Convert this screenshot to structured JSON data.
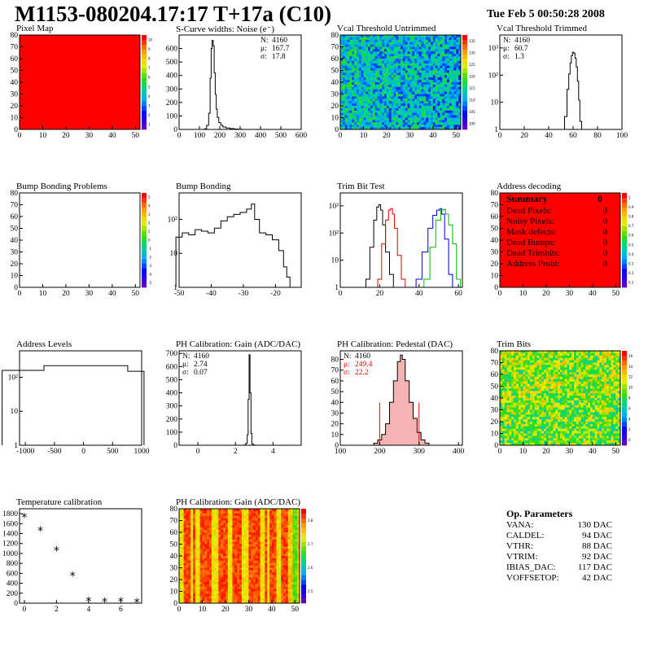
{
  "header": {
    "title": "M1153-080204.17:17 T+17a (C10)",
    "date": "Tue Feb  5 00:50:28 2008"
  },
  "panels": [
    {
      "id": "pixel-map",
      "title": "Pixel Map",
      "kind": "map",
      "style": "solid-red",
      "x_ticks": [
        "0",
        "10",
        "20",
        "30",
        "40",
        "50"
      ],
      "y_ticks": [
        "0",
        "10",
        "20",
        "30",
        "40",
        "50",
        "60",
        "70",
        "80"
      ],
      "z_ticks": [
        "1",
        "2",
        "3",
        "4",
        "5",
        "6",
        "7",
        "8",
        "9",
        "10"
      ],
      "stats": []
    },
    {
      "id": "scurve-widths",
      "title": "S-Curve widths: Noise (e⁻)",
      "kind": "hist1d",
      "x_ticks": [
        "0",
        "100",
        "200",
        "300",
        "400",
        "500",
        "600"
      ],
      "y_ticks": [
        "0",
        "100",
        "200",
        "300",
        "400",
        "500",
        "600"
      ],
      "log_y": false,
      "stats": [
        {
          "label": "N:",
          "value": "4160",
          "color": "#000"
        },
        {
          "label": "μ:",
          "value": "167.7",
          "color": "#000"
        },
        {
          "label": "σ:",
          "value": "17.8",
          "color": "#000"
        }
      ]
    },
    {
      "id": "vcal-untrimmed",
      "title": "Vcal Threshold Untrimmed",
      "kind": "map",
      "style": "noise-cool",
      "x_ticks": [
        "0",
        "10",
        "20",
        "30",
        "40",
        "50"
      ],
      "y_ticks": [
        "0",
        "10",
        "20",
        "30",
        "40",
        "50",
        "60",
        "70",
        "80"
      ],
      "z_ticks": [
        "100",
        "105",
        "110",
        "115",
        "120",
        "125",
        "130",
        "135"
      ],
      "stats": []
    },
    {
      "id": "vcal-trimmed",
      "title": "Vcal Threshold Trimmed",
      "kind": "hist1d",
      "x_ticks": [
        "0",
        "20",
        "40",
        "60",
        "80",
        "100"
      ],
      "y_ticks": [
        "1",
        "10",
        "10²",
        "10³"
      ],
      "log_y": true,
      "stats": [
        {
          "label": "N:",
          "value": "4160",
          "color": "#000"
        },
        {
          "label": "μ:",
          "value": "60.7",
          "color": "#000"
        },
        {
          "label": "σ:",
          "value": "1.3",
          "color": "#000"
        }
      ]
    },
    {
      "id": "bump-problems",
      "title": "Bump Bonding Problems",
      "kind": "map",
      "style": "empty",
      "x_ticks": [
        "0",
        "10",
        "20",
        "30",
        "40",
        "50"
      ],
      "y_ticks": [
        "0",
        "10",
        "20",
        "30",
        "40",
        "50",
        "60",
        "70",
        "80"
      ],
      "z_ticks": [
        "-5",
        "-4",
        "-3",
        "-2",
        "-1",
        "0",
        "1",
        "2",
        "3",
        "4",
        "5"
      ],
      "stats": []
    },
    {
      "id": "bump-bonding",
      "title": "Bump Bonding",
      "kind": "hist1d",
      "x_ticks": [
        "-50",
        "-40",
        "-30",
        "-20"
      ],
      "y_ticks": [
        "1",
        "10",
        "10²"
      ],
      "log_y": true,
      "stats": []
    },
    {
      "id": "trim-bit-test",
      "title": "Trim Bit Test",
      "kind": "hist-multi",
      "x_ticks": [
        "0",
        "20",
        "40",
        "60"
      ],
      "y_ticks": [
        "1",
        "10",
        "10²",
        "10³"
      ],
      "log_y": true,
      "stats": []
    },
    {
      "id": "address-decoding",
      "title": "Address decoding",
      "kind": "map",
      "style": "solid-red",
      "x_ticks": [
        "0",
        "10",
        "20",
        "30",
        "40",
        "50"
      ],
      "y_ticks": [
        "0",
        "10",
        "20",
        "30",
        "40",
        "50",
        "60",
        "70",
        "80"
      ],
      "z_ticks": [
        "0.1",
        "0.2",
        "0.3",
        "0.4",
        "0.5",
        "0.6",
        "0.7",
        "0.8",
        "0.9",
        "1"
      ],
      "stats": []
    },
    {
      "id": "address-levels",
      "title": "Address Levels",
      "kind": "hist1d",
      "x_ticks": [
        "-1000",
        "-500",
        "0",
        "500",
        "1000"
      ],
      "y_ticks": [
        "1",
        "10",
        "10²"
      ],
      "log_y": true,
      "stats": []
    },
    {
      "id": "ph-gain",
      "title": "PH Calibration: Gain (ADC/DAC)",
      "kind": "hist1d",
      "x_ticks": [
        "0",
        "2",
        "4"
      ],
      "y_ticks": [
        "0",
        "100",
        "200",
        "300",
        "400",
        "500",
        "600",
        "700"
      ],
      "log_y": false,
      "stats": [
        {
          "label": "N:",
          "value": "4160",
          "color": "#000"
        },
        {
          "label": "μ:",
          "value": "2.74",
          "color": "#000"
        },
        {
          "label": "σ:",
          "value": "0.07",
          "color": "#000"
        }
      ]
    },
    {
      "id": "ph-pedestal",
      "title": "PH Calibration: Pedestal (DAC)",
      "kind": "hist1d",
      "x_ticks": [
        "100",
        "200",
        "300",
        "400"
      ],
      "y_ticks": [
        "0",
        "10",
        "20",
        "30",
        "40",
        "50",
        "60",
        "70",
        "80"
      ],
      "log_y": false,
      "stats": [
        {
          "label": "N:",
          "value": "4160",
          "color": "#000"
        },
        {
          "label": "μ:",
          "value": "249.4",
          "color": "#e00000"
        },
        {
          "label": "σ:",
          "value": "22.2",
          "color": "#e00000"
        }
      ]
    },
    {
      "id": "trim-bits",
      "title": "Trim Bits",
      "kind": "map",
      "style": "noise-warm",
      "x_ticks": [
        "0",
        "10",
        "20",
        "30",
        "40",
        "50"
      ],
      "y_ticks": [
        "0",
        "10",
        "20",
        "30",
        "40",
        "50",
        "60",
        "70",
        "80"
      ],
      "z_ticks": [
        "0",
        "2",
        "4",
        "6",
        "8",
        "10",
        "12",
        "14",
        "16"
      ],
      "stats": []
    },
    {
      "id": "temp-calibration",
      "title": "Temperature calibration",
      "kind": "scatter",
      "x_ticks": [
        "0",
        "2",
        "4",
        "6"
      ],
      "y_ticks": [
        "0",
        "200",
        "400",
        "600",
        "800",
        "1000",
        "1200",
        "1400",
        "1600",
        "1800"
      ],
      "log_y": false,
      "stats": []
    },
    {
      "id": "ph-gain-map",
      "title": "PH Calibration: Gain (ADC/DAC)",
      "kind": "map",
      "style": "stripes",
      "x_ticks": [
        "0",
        "10",
        "20",
        "30",
        "40",
        "50"
      ],
      "y_ticks": [
        "0",
        "10",
        "20",
        "30",
        "40",
        "50",
        "60",
        "70",
        "80"
      ],
      "z_ticks": [
        "2.5",
        "2.6",
        "2.7",
        "2.8"
      ],
      "stats": []
    }
  ],
  "summary": {
    "title": "Summary",
    "total": "0",
    "rows": [
      {
        "label": "Dead Pixels:",
        "value": "0"
      },
      {
        "label": "Noisy Pixels:",
        "value": "0"
      },
      {
        "label": "Mask defects:",
        "value": "0"
      },
      {
        "label": "Dead Bumps:",
        "value": "0"
      },
      {
        "label": "Dead Trimbits:",
        "value": "0"
      },
      {
        "label": "Address Probl:",
        "value": "0"
      }
    ]
  },
  "op_params": {
    "title": "Op. Parameters",
    "rows": [
      {
        "label": "VANA:",
        "value": "130 DAC"
      },
      {
        "label": "CALDEL:",
        "value": "94 DAC"
      },
      {
        "label": "VTHR:",
        "value": "88 DAC"
      },
      {
        "label": "VTRIM:",
        "value": "92 DAC"
      },
      {
        "label": "IBIAS_DAC:",
        "value": "117 DAC"
      },
      {
        "label": "VOFFSETOP:",
        "value": "42 DAC"
      }
    ]
  },
  "chart_data": [
    {
      "type": "heatmap",
      "name": "Pixel Map",
      "xlim": [
        0,
        52
      ],
      "ylim": [
        0,
        80
      ],
      "zlim": [
        1,
        10
      ],
      "uniform_value": 10
    },
    {
      "type": "bar",
      "name": "S-Curve widths: Noise (e-)",
      "xlim": [
        0,
        600
      ],
      "ylim": [
        0,
        700
      ],
      "x": [
        130,
        140,
        150,
        155,
        160,
        165,
        170,
        175,
        180,
        185,
        190,
        200,
        210,
        220,
        240,
        260,
        280,
        300
      ],
      "values": [
        5,
        30,
        120,
        380,
        600,
        660,
        620,
        420,
        260,
        150,
        90,
        50,
        30,
        18,
        10,
        6,
        3,
        1
      ]
    },
    {
      "type": "heatmap",
      "name": "Vcal Threshold Untrimmed",
      "xlim": [
        0,
        52
      ],
      "ylim": [
        0,
        80
      ],
      "zlim": [
        100,
        137
      ]
    },
    {
      "type": "bar",
      "name": "Vcal Threshold Trimmed",
      "log_y": true,
      "xlim": [
        0,
        100
      ],
      "ylim": [
        1,
        3000
      ],
      "x": [
        52,
        54,
        56,
        57,
        58,
        59,
        60,
        61,
        62,
        63,
        64,
        65,
        66,
        68
      ],
      "values": [
        1,
        3,
        30,
        110,
        280,
        520,
        700,
        640,
        420,
        200,
        60,
        12,
        2,
        1
      ]
    },
    {
      "type": "heatmap",
      "name": "Bump Bonding Problems",
      "xlim": [
        0,
        52
      ],
      "ylim": [
        0,
        80
      ],
      "zlim": [
        -5,
        5
      ]
    },
    {
      "type": "bar",
      "name": "Bump Bonding",
      "log_y": true,
      "xlim": [
        -50,
        -12
      ],
      "ylim": [
        1,
        600
      ],
      "x": [
        -50,
        -48,
        -46,
        -44,
        -42,
        -40,
        -38,
        -36,
        -34,
        -32,
        -30,
        -28,
        -27,
        -26,
        -24,
        -22,
        -20,
        -18,
        -17,
        -16,
        -15
      ],
      "values": [
        30,
        40,
        35,
        50,
        45,
        40,
        55,
        90,
        120,
        140,
        160,
        200,
        280,
        100,
        40,
        35,
        25,
        12,
        4,
        2,
        1
      ]
    },
    {
      "type": "bar",
      "name": "Trim Bit Test",
      "log_y": true,
      "xlim": [
        0,
        62
      ],
      "ylim": [
        1,
        3000
      ],
      "series": [
        {
          "color": "#000000",
          "x": [
            14,
            16,
            18,
            19,
            20,
            21,
            22,
            24,
            26
          ],
          "values": [
            2,
            30,
            300,
            900,
            1100,
            700,
            200,
            20,
            3
          ]
        },
        {
          "color": "#e00000",
          "x": [
            20,
            22,
            24,
            25,
            26,
            27,
            28,
            30,
            32
          ],
          "values": [
            2,
            40,
            300,
            700,
            800,
            500,
            150,
            15,
            2
          ]
        },
        {
          "color": "#0000cc",
          "x": [
            40,
            43,
            46,
            48,
            50,
            51,
            52,
            54,
            56
          ],
          "values": [
            2,
            20,
            150,
            450,
            700,
            800,
            500,
            60,
            3
          ]
        },
        {
          "color": "#00bb00",
          "x": [
            44,
            47,
            50,
            52,
            53,
            54,
            56,
            58,
            60
          ],
          "values": [
            2,
            30,
            300,
            700,
            750,
            500,
            200,
            40,
            2
          ]
        }
      ]
    },
    {
      "type": "heatmap",
      "name": "Address decoding",
      "xlim": [
        0,
        52
      ],
      "ylim": [
        0,
        80
      ],
      "zlim": [
        0,
        1
      ],
      "uniform_value": 1
    },
    {
      "type": "bar",
      "name": "Address Levels",
      "log_y": true,
      "xlim": [
        -1100,
        1000
      ],
      "ylim": [
        1,
        600
      ],
      "x": [
        -1040,
        -320,
        40,
        340,
        620,
        900
      ],
      "values": [
        160,
        220,
        220,
        220,
        220,
        150
      ]
    },
    {
      "type": "bar",
      "name": "PH Calibration: Gain",
      "xlim": [
        -1,
        5.5
      ],
      "ylim": [
        0,
        720
      ],
      "x": [
        2.5,
        2.6,
        2.65,
        2.7,
        2.75,
        2.8,
        2.85,
        2.9,
        3.0
      ],
      "values": [
        2,
        15,
        80,
        350,
        690,
        400,
        90,
        10,
        1
      ]
    },
    {
      "type": "bar",
      "name": "PH Calibration: Pedestal",
      "xlim": [
        100,
        410
      ],
      "ylim": [
        0,
        88
      ],
      "x": [
        190,
        200,
        210,
        220,
        230,
        240,
        250,
        255,
        260,
        270,
        280,
        290,
        300,
        310,
        320
      ],
      "values": [
        2,
        5,
        10,
        20,
        40,
        60,
        78,
        84,
        80,
        60,
        40,
        25,
        12,
        5,
        2
      ]
    },
    {
      "type": "heatmap",
      "name": "Trim Bits",
      "xlim": [
        0,
        52
      ],
      "ylim": [
        0,
        80
      ],
      "zlim": [
        0,
        16
      ]
    },
    {
      "type": "scatter",
      "name": "Temperature calibration",
      "xlim": [
        -0.3,
        7.3
      ],
      "ylim": [
        0,
        1900
      ],
      "x": [
        0,
        1,
        2,
        3,
        4,
        5,
        6,
        7
      ],
      "values": [
        1730,
        1460,
        1060,
        550,
        45,
        25,
        35,
        20
      ]
    },
    {
      "type": "heatmap",
      "name": "PH Calibration: Gain map",
      "xlim": [
        0,
        52
      ],
      "ylim": [
        0,
        80
      ],
      "zlim": [
        2.45,
        2.85
      ]
    }
  ]
}
